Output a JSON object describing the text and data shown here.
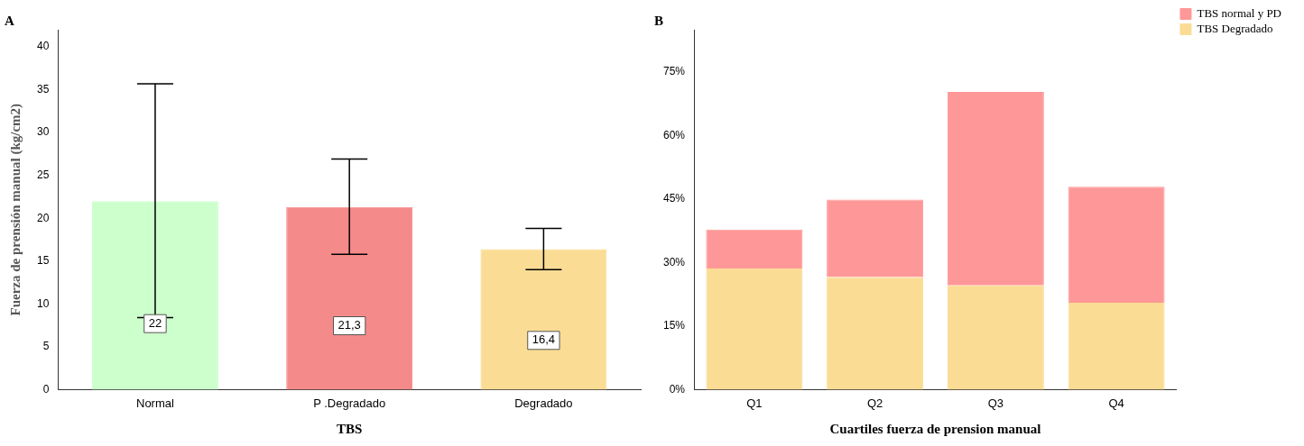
{
  "chart_data": [
    {
      "type": "bar",
      "title": "A",
      "xlabel": "TBS",
      "ylabel": "Fuerza de prensión manual (kg/cm2)",
      "categories": [
        "Normal",
        "P .Degradado",
        "Degradado"
      ],
      "values": [
        22,
        21.3,
        16.4
      ],
      "colors": [
        "#ccffcc",
        "#f58a8a",
        "#fadc94"
      ],
      "errors": [
        [
          8.4,
          35.7
        ],
        [
          15.8,
          26.9
        ],
        [
          14.0,
          18.8
        ]
      ],
      "value_labels": [
        "22",
        "21,3",
        "16,4"
      ],
      "ylim": [
        0,
        42
      ],
      "yticks": [
        0,
        5,
        10,
        15,
        20,
        25,
        30,
        35,
        40
      ],
      "grid": false,
      "legend": false
    },
    {
      "type": "bar",
      "title": "B",
      "xlabel": "Cuartiles fuerza de prension manual",
      "categories": [
        "Q1",
        "Q2",
        "Q3",
        "Q4"
      ],
      "stacked": true,
      "series": [
        {
          "name": "TBS Degradado",
          "color": "#fadc94",
          "values": [
            28.6,
            26.6,
            24.6,
            20.5
          ]
        },
        {
          "name": "TBS normal y PD",
          "color": "#fe9898",
          "values": [
            9.2,
            18.3,
            45.7,
            27.4
          ]
        }
      ],
      "ylim": [
        0,
        85
      ],
      "yticks": [
        {
          "value": 0,
          "label": "0%"
        },
        {
          "value": 15,
          "label": "15%"
        },
        {
          "value": 30,
          "label": "30%"
        },
        {
          "value": 45,
          "label": "45%"
        },
        {
          "value": 60,
          "label": "60%"
        },
        {
          "value": 75,
          "label": "75%"
        }
      ],
      "grid": false,
      "legend": "top right"
    }
  ]
}
